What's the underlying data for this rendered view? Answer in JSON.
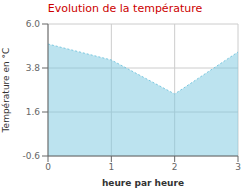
{
  "chart_data": {
    "type": "area",
    "title": "Evolution de la température",
    "xlabel": "heure par heure",
    "ylabel": "Température en °C",
    "x": [
      0,
      1,
      2,
      3
    ],
    "values": [
      5.0,
      4.2,
      2.5,
      4.6
    ],
    "xlim": [
      0,
      3
    ],
    "xticks": [
      0,
      1,
      2,
      3
    ],
    "ylim": [
      -0.6,
      6.0
    ],
    "yticks": [
      -0.6,
      1.6,
      3.8,
      {
        "value": 6.0,
        "label": "6.0"
      }
    ],
    "color": "#7ac8e0",
    "line_style": "dotted",
    "grid": true
  }
}
